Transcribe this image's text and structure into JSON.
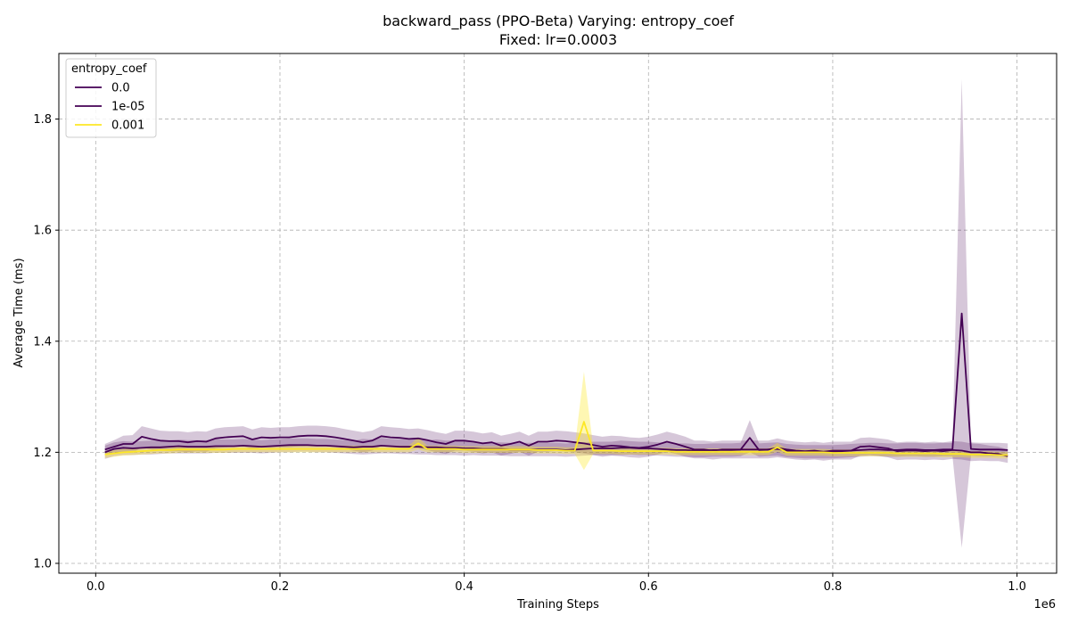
{
  "chart_data": {
    "type": "line",
    "title": "backward_pass (PPO-Beta) Varying: entropy_coef",
    "subtitle": "Fixed: lr=0.0003",
    "xlabel": "Training Steps",
    "ylabel": "Average Time (ms)",
    "x_offset_label": "1e6",
    "xlim": [
      -40000,
      1043000
    ],
    "ylim": [
      0.9823,
      1.9181
    ],
    "x_ticks": [
      0.0,
      0.2,
      0.4,
      0.6,
      0.8,
      1.0
    ],
    "x_tick_labels": [
      "0.0",
      "0.2",
      "0.4",
      "0.6",
      "0.8",
      "1.0"
    ],
    "y_ticks": [
      1.0,
      1.2,
      1.4,
      1.6,
      1.8
    ],
    "y_tick_labels": [
      "1.0",
      "1.2",
      "1.4",
      "1.6",
      "1.8"
    ],
    "grid": true,
    "legend": {
      "title": "entropy_coef",
      "position": "top-left"
    },
    "x": [
      10000,
      20000,
      30000,
      40000,
      50000,
      60000,
      70000,
      80000,
      90000,
      100000,
      110000,
      120000,
      130000,
      140000,
      150000,
      160000,
      170000,
      180000,
      190000,
      200000,
      210000,
      220000,
      230000,
      240000,
      250000,
      260000,
      270000,
      280000,
      290000,
      300000,
      310000,
      320000,
      330000,
      340000,
      350000,
      360000,
      370000,
      380000,
      390000,
      400000,
      410000,
      420000,
      430000,
      440000,
      450000,
      460000,
      470000,
      480000,
      490000,
      500000,
      510000,
      520000,
      530000,
      540000,
      550000,
      560000,
      570000,
      580000,
      590000,
      600000,
      610000,
      620000,
      630000,
      640000,
      650000,
      660000,
      670000,
      680000,
      690000,
      700000,
      710000,
      720000,
      730000,
      740000,
      750000,
      760000,
      770000,
      780000,
      790000,
      800000,
      810000,
      820000,
      830000,
      840000,
      850000,
      860000,
      870000,
      880000,
      890000,
      900000,
      910000,
      920000,
      930000,
      940000,
      950000,
      960000,
      970000,
      980000,
      990000
    ],
    "series": [
      {
        "name": "0.0",
        "color": "#440154",
        "band_opacity": 0.22,
        "values": [
          1.2,
          1.206,
          1.208,
          1.207,
          1.208,
          1.209,
          1.209,
          1.21,
          1.211,
          1.21,
          1.21,
          1.21,
          1.211,
          1.211,
          1.211,
          1.212,
          1.211,
          1.21,
          1.211,
          1.212,
          1.213,
          1.213,
          1.213,
          1.212,
          1.212,
          1.211,
          1.21,
          1.209,
          1.21,
          1.21,
          1.212,
          1.211,
          1.21,
          1.21,
          1.21,
          1.209,
          1.209,
          1.208,
          1.208,
          1.207,
          1.207,
          1.206,
          1.206,
          1.206,
          1.205,
          1.205,
          1.205,
          1.205,
          1.205,
          1.205,
          1.204,
          1.205,
          1.206,
          1.207,
          1.207,
          1.207,
          1.208,
          1.208,
          1.207,
          1.207,
          1.206,
          1.205,
          1.204,
          1.204,
          1.203,
          1.203,
          1.204,
          1.204,
          1.204,
          1.205,
          1.226,
          1.204,
          1.205,
          1.206,
          1.203,
          1.202,
          1.201,
          1.201,
          1.201,
          1.201,
          1.202,
          1.203,
          1.204,
          1.205,
          1.205,
          1.204,
          1.204,
          1.205,
          1.205,
          1.204,
          1.204,
          1.205,
          1.205,
          1.45,
          1.206,
          1.205,
          1.205,
          1.205,
          1.204
        ],
        "lower": [
          1.188,
          1.193,
          1.195,
          1.195,
          1.196,
          1.196,
          1.197,
          1.198,
          1.198,
          1.198,
          1.198,
          1.198,
          1.199,
          1.199,
          1.199,
          1.199,
          1.199,
          1.198,
          1.199,
          1.2,
          1.2,
          1.201,
          1.201,
          1.2,
          1.2,
          1.199,
          1.198,
          1.197,
          1.196,
          1.197,
          1.198,
          1.198,
          1.197,
          1.197,
          1.196,
          1.196,
          1.195,
          1.195,
          1.195,
          1.194,
          1.195,
          1.194,
          1.194,
          1.194,
          1.193,
          1.193,
          1.193,
          1.193,
          1.193,
          1.193,
          1.192,
          1.193,
          1.194,
          1.195,
          1.195,
          1.195,
          1.195,
          1.196,
          1.195,
          1.195,
          1.194,
          1.193,
          1.192,
          1.192,
          1.191,
          1.191,
          1.192,
          1.192,
          1.192,
          1.193,
          1.2,
          1.192,
          1.193,
          1.194,
          1.191,
          1.19,
          1.189,
          1.189,
          1.189,
          1.189,
          1.19,
          1.191,
          1.192,
          1.193,
          1.193,
          1.192,
          1.192,
          1.193,
          1.193,
          1.192,
          1.192,
          1.193,
          1.193,
          1.028,
          1.194,
          1.193,
          1.193,
          1.193,
          1.192
        ],
        "upper": [
          1.212,
          1.218,
          1.22,
          1.219,
          1.22,
          1.221,
          1.221,
          1.222,
          1.223,
          1.222,
          1.222,
          1.222,
          1.223,
          1.223,
          1.223,
          1.224,
          1.223,
          1.222,
          1.223,
          1.224,
          1.225,
          1.225,
          1.225,
          1.224,
          1.224,
          1.223,
          1.222,
          1.221,
          1.224,
          1.223,
          1.226,
          1.224,
          1.223,
          1.223,
          1.224,
          1.222,
          1.223,
          1.221,
          1.221,
          1.22,
          1.219,
          1.218,
          1.218,
          1.218,
          1.217,
          1.217,
          1.217,
          1.217,
          1.217,
          1.217,
          1.216,
          1.217,
          1.218,
          1.219,
          1.219,
          1.219,
          1.221,
          1.22,
          1.219,
          1.219,
          1.218,
          1.217,
          1.216,
          1.216,
          1.215,
          1.215,
          1.216,
          1.216,
          1.216,
          1.217,
          1.258,
          1.216,
          1.217,
          1.218,
          1.215,
          1.214,
          1.213,
          1.213,
          1.213,
          1.213,
          1.214,
          1.215,
          1.216,
          1.217,
          1.217,
          1.216,
          1.216,
          1.217,
          1.217,
          1.216,
          1.216,
          1.217,
          1.217,
          1.872,
          1.218,
          1.217,
          1.217,
          1.217,
          1.216
        ]
      },
      {
        "name": "1e-05",
        "color": "#440154",
        "band_opacity": 0.22,
        "values": [
          1.205,
          1.21,
          1.215,
          1.215,
          1.228,
          1.224,
          1.221,
          1.22,
          1.22,
          1.218,
          1.22,
          1.219,
          1.225,
          1.227,
          1.228,
          1.229,
          1.223,
          1.227,
          1.226,
          1.227,
          1.227,
          1.229,
          1.23,
          1.23,
          1.229,
          1.227,
          1.224,
          1.221,
          1.218,
          1.221,
          1.229,
          1.227,
          1.226,
          1.224,
          1.225,
          1.222,
          1.218,
          1.215,
          1.221,
          1.221,
          1.219,
          1.216,
          1.218,
          1.212,
          1.215,
          1.219,
          1.212,
          1.219,
          1.219,
          1.221,
          1.22,
          1.218,
          1.216,
          1.213,
          1.21,
          1.212,
          1.211,
          1.209,
          1.208,
          1.21,
          1.214,
          1.219,
          1.215,
          1.21,
          1.205,
          1.205,
          1.203,
          1.205,
          1.205,
          1.205,
          1.205,
          1.205,
          1.205,
          1.208,
          1.205,
          1.203,
          1.202,
          1.203,
          1.201,
          1.203,
          1.203,
          1.203,
          1.21,
          1.211,
          1.209,
          1.207,
          1.202,
          1.203,
          1.203,
          1.202,
          1.203,
          1.202,
          1.204,
          1.203,
          1.2,
          1.2,
          1.198,
          1.197,
          1.193
        ],
        "lower": [
          1.195,
          1.198,
          1.2,
          1.199,
          1.209,
          1.205,
          1.203,
          1.202,
          1.202,
          1.2,
          1.202,
          1.201,
          1.207,
          1.209,
          1.21,
          1.211,
          1.205,
          1.209,
          1.208,
          1.209,
          1.209,
          1.211,
          1.212,
          1.212,
          1.211,
          1.209,
          1.206,
          1.203,
          1.2,
          1.203,
          1.211,
          1.209,
          1.208,
          1.206,
          1.207,
          1.204,
          1.2,
          1.197,
          1.203,
          1.203,
          1.201,
          1.198,
          1.2,
          1.194,
          1.197,
          1.201,
          1.194,
          1.201,
          1.201,
          1.203,
          1.202,
          1.2,
          1.198,
          1.195,
          1.192,
          1.194,
          1.193,
          1.191,
          1.19,
          1.192,
          1.196,
          1.201,
          1.197,
          1.192,
          1.189,
          1.189,
          1.187,
          1.189,
          1.189,
          1.189,
          1.189,
          1.189,
          1.189,
          1.191,
          1.189,
          1.187,
          1.186,
          1.187,
          1.185,
          1.187,
          1.187,
          1.187,
          1.194,
          1.195,
          1.193,
          1.191,
          1.186,
          1.187,
          1.187,
          1.186,
          1.187,
          1.186,
          1.188,
          1.187,
          1.184,
          1.185,
          1.184,
          1.184,
          1.181
        ],
        "upper": [
          1.215,
          1.222,
          1.23,
          1.231,
          1.247,
          1.243,
          1.239,
          1.238,
          1.238,
          1.236,
          1.238,
          1.237,
          1.243,
          1.245,
          1.246,
          1.247,
          1.241,
          1.245,
          1.244,
          1.245,
          1.245,
          1.247,
          1.248,
          1.248,
          1.247,
          1.245,
          1.242,
          1.239,
          1.236,
          1.239,
          1.247,
          1.245,
          1.244,
          1.242,
          1.243,
          1.24,
          1.236,
          1.233,
          1.239,
          1.239,
          1.237,
          1.234,
          1.236,
          1.23,
          1.233,
          1.237,
          1.23,
          1.237,
          1.237,
          1.239,
          1.238,
          1.236,
          1.234,
          1.231,
          1.228,
          1.23,
          1.229,
          1.227,
          1.226,
          1.228,
          1.232,
          1.237,
          1.233,
          1.228,
          1.221,
          1.221,
          1.219,
          1.221,
          1.221,
          1.221,
          1.221,
          1.221,
          1.221,
          1.225,
          1.221,
          1.219,
          1.218,
          1.219,
          1.217,
          1.219,
          1.219,
          1.219,
          1.226,
          1.227,
          1.225,
          1.223,
          1.218,
          1.219,
          1.219,
          1.218,
          1.219,
          1.218,
          1.22,
          1.219,
          1.216,
          1.215,
          1.212,
          1.21,
          1.205
        ]
      },
      {
        "name": "0.001",
        "color": "#fde725",
        "band_opacity": 0.35,
        "values": [
          1.196,
          1.198,
          1.2,
          1.201,
          1.202,
          1.203,
          1.204,
          1.204,
          1.205,
          1.205,
          1.205,
          1.205,
          1.205,
          1.205,
          1.206,
          1.206,
          1.206,
          1.206,
          1.206,
          1.206,
          1.206,
          1.206,
          1.206,
          1.206,
          1.206,
          1.206,
          1.206,
          1.206,
          1.206,
          1.206,
          1.206,
          1.206,
          1.206,
          1.206,
          1.216,
          1.206,
          1.206,
          1.206,
          1.206,
          1.205,
          1.205,
          1.205,
          1.205,
          1.205,
          1.205,
          1.205,
          1.205,
          1.204,
          1.204,
          1.204,
          1.203,
          1.203,
          1.255,
          1.203,
          1.203,
          1.203,
          1.202,
          1.202,
          1.202,
          1.202,
          1.202,
          1.202,
          1.201,
          1.201,
          1.201,
          1.201,
          1.201,
          1.201,
          1.201,
          1.201,
          1.201,
          1.201,
          1.201,
          1.209,
          1.2,
          1.2,
          1.2,
          1.2,
          1.2,
          1.199,
          1.199,
          1.199,
          1.199,
          1.199,
          1.199,
          1.199,
          1.198,
          1.198,
          1.198,
          1.198,
          1.198,
          1.197,
          1.197,
          1.197,
          1.196,
          1.196,
          1.196,
          1.195,
          1.195
        ],
        "lower": [
          1.19,
          1.192,
          1.194,
          1.195,
          1.196,
          1.197,
          1.198,
          1.198,
          1.199,
          1.199,
          1.199,
          1.199,
          1.199,
          1.199,
          1.2,
          1.2,
          1.2,
          1.2,
          1.2,
          1.2,
          1.2,
          1.2,
          1.2,
          1.2,
          1.2,
          1.2,
          1.2,
          1.2,
          1.2,
          1.2,
          1.2,
          1.2,
          1.2,
          1.2,
          1.205,
          1.2,
          1.2,
          1.2,
          1.2,
          1.199,
          1.199,
          1.199,
          1.199,
          1.199,
          1.199,
          1.199,
          1.199,
          1.198,
          1.198,
          1.198,
          1.197,
          1.197,
          1.168,
          1.197,
          1.197,
          1.197,
          1.196,
          1.196,
          1.196,
          1.196,
          1.196,
          1.196,
          1.195,
          1.195,
          1.195,
          1.195,
          1.195,
          1.195,
          1.195,
          1.195,
          1.195,
          1.195,
          1.195,
          1.201,
          1.194,
          1.194,
          1.194,
          1.194,
          1.194,
          1.193,
          1.193,
          1.193,
          1.193,
          1.193,
          1.193,
          1.193,
          1.192,
          1.192,
          1.192,
          1.192,
          1.192,
          1.191,
          1.191,
          1.191,
          1.19,
          1.19,
          1.19,
          1.189,
          1.189
        ],
        "upper": [
          1.202,
          1.204,
          1.206,
          1.207,
          1.208,
          1.209,
          1.21,
          1.21,
          1.211,
          1.211,
          1.211,
          1.211,
          1.211,
          1.211,
          1.212,
          1.212,
          1.212,
          1.212,
          1.212,
          1.212,
          1.212,
          1.212,
          1.212,
          1.212,
          1.212,
          1.212,
          1.212,
          1.212,
          1.212,
          1.212,
          1.212,
          1.212,
          1.212,
          1.212,
          1.227,
          1.212,
          1.212,
          1.212,
          1.212,
          1.211,
          1.211,
          1.211,
          1.211,
          1.211,
          1.211,
          1.211,
          1.211,
          1.21,
          1.21,
          1.21,
          1.209,
          1.209,
          1.345,
          1.209,
          1.209,
          1.209,
          1.208,
          1.208,
          1.208,
          1.208,
          1.208,
          1.208,
          1.207,
          1.207,
          1.207,
          1.207,
          1.207,
          1.207,
          1.207,
          1.207,
          1.207,
          1.207,
          1.207,
          1.217,
          1.206,
          1.206,
          1.206,
          1.206,
          1.206,
          1.205,
          1.205,
          1.205,
          1.205,
          1.205,
          1.205,
          1.205,
          1.204,
          1.204,
          1.204,
          1.204,
          1.204,
          1.203,
          1.203,
          1.203,
          1.202,
          1.202,
          1.202,
          1.201,
          1.201
        ]
      }
    ]
  }
}
